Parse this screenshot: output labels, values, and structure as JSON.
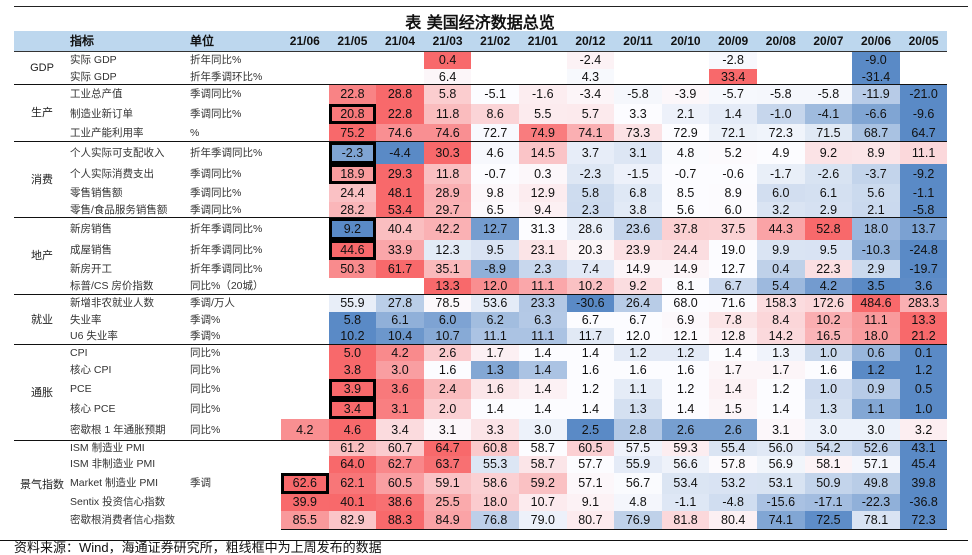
{
  "title": "表  美国经济数据总览",
  "header": {
    "indicator": "指标",
    "unit": "单位"
  },
  "columns": [
    "21/06",
    "21/05",
    "21/04",
    "21/03",
    "21/02",
    "21/01",
    "20/12",
    "20/11",
    "20/10",
    "20/09",
    "20/08",
    "20/07",
    "20/06",
    "20/05"
  ],
  "colors": {
    "high": "#f8696b",
    "mid": "#fcfcff",
    "low": "#5a8ac6",
    "header_bg": "#bdd7ee"
  },
  "groups": [
    {
      "label": "GDP",
      "rows": [
        {
          "name": "实际 GDP",
          "unit": "折年同比%",
          "values": [
            null,
            null,
            null,
            "0.4",
            null,
            null,
            "-2.4",
            null,
            null,
            "-2.8",
            null,
            null,
            "-9.0",
            null
          ]
        },
        {
          "name": "实际 GDP",
          "unit": "折年季调环比%",
          "values": [
            null,
            null,
            null,
            "6.4",
            null,
            null,
            "4.3",
            null,
            null,
            "33.4",
            null,
            null,
            "-31.4",
            null
          ]
        }
      ]
    },
    {
      "label": "生产",
      "rows": [
        {
          "name": "工业总产值",
          "unit": "季调同比%",
          "values": [
            null,
            "22.8",
            "28.8",
            "5.8",
            "-5.1",
            "-1.6",
            "-3.4",
            "-5.8",
            "-3.9",
            "-5.7",
            "-5.8",
            "-5.8",
            "-11.9",
            "-21.0"
          ]
        },
        {
          "name": "制造业新订单",
          "unit": "季调同比%",
          "highlight": 1,
          "values": [
            null,
            "20.8",
            "22.8",
            "11.8",
            "8.6",
            "5.5",
            "5.7",
            "3.3",
            "2.1",
            "1.4",
            "-1.0",
            "-4.1",
            "-6.6",
            "-9.6"
          ]
        },
        {
          "name": "工业产能利用率",
          "unit": "%",
          "values": [
            null,
            "75.2",
            "74.6",
            "74.6",
            "72.7",
            "74.9",
            "74.1",
            "73.3",
            "72.9",
            "72.1",
            "72.3",
            "71.5",
            "68.7",
            "64.7"
          ]
        }
      ]
    },
    {
      "label": "消费",
      "rows": [
        {
          "name": "个人实际可支配收入",
          "unit": "折年季调同比%",
          "highlight": 1,
          "values": [
            null,
            "-2.3",
            "-4.4",
            "30.3",
            "4.6",
            "14.5",
            "3.7",
            "3.1",
            "4.8",
            "5.2",
            "4.9",
            "9.2",
            "8.9",
            "11.1"
          ]
        },
        {
          "name": "个人实际消费支出",
          "unit": "季调同比%",
          "highlight": 1,
          "values": [
            null,
            "18.9",
            "29.3",
            "11.8",
            "-0.7",
            "0.3",
            "-2.3",
            "-1.5",
            "-0.7",
            "-0.6",
            "-1.7",
            "-2.6",
            "-3.7",
            "-9.2"
          ]
        },
        {
          "name": "零售销售额",
          "unit": "季调同比%",
          "values": [
            null,
            "24.4",
            "48.1",
            "28.9",
            "9.8",
            "12.9",
            "5.8",
            "6.8",
            "8.5",
            "8.9",
            "6.0",
            "6.1",
            "5.6",
            "-1.1"
          ]
        },
        {
          "name": "零售/食品服务销售额",
          "unit": "季调同比%",
          "values": [
            null,
            "28.2",
            "53.4",
            "29.7",
            "6.5",
            "9.4",
            "2.3",
            "3.8",
            "5.6",
            "6.0",
            "3.2",
            "2.9",
            "2.1",
            "-5.8"
          ]
        }
      ]
    },
    {
      "label": "地产",
      "rows": [
        {
          "name": "新房销售",
          "unit": "折年季调同比%",
          "highlight": 1,
          "values": [
            null,
            "9.2",
            "40.4",
            "42.2",
            "12.7",
            "31.3",
            "28.6",
            "23.6",
            "37.8",
            "37.5",
            "44.3",
            "52.8",
            "18.0",
            "13.7"
          ]
        },
        {
          "name": "成屋销售",
          "unit": "折年季调同比%",
          "highlight": 1,
          "values": [
            null,
            "44.6",
            "33.9",
            "12.3",
            "9.5",
            "23.1",
            "20.3",
            "23.9",
            "24.4",
            "19.0",
            "9.9",
            "9.5",
            "-10.3",
            "-24.8"
          ]
        },
        {
          "name": "新房开工",
          "unit": "折年季调同比%",
          "values": [
            null,
            "50.3",
            "61.7",
            "35.1",
            "-8.9",
            "2.3",
            "7.4",
            "14.9",
            "14.9",
            "12.7",
            "0.4",
            "22.3",
            "2.9",
            "-19.7"
          ]
        },
        {
          "name": "标普/CS 房价指数",
          "unit": "同比%（20城）",
          "values": [
            null,
            null,
            null,
            "13.3",
            "12.0",
            "11.1",
            "10.2",
            "9.2",
            "8.1",
            "6.7",
            "5.4",
            "4.2",
            "3.5",
            "3.6"
          ]
        }
      ]
    },
    {
      "label": "就业",
      "rows": [
        {
          "name": "新增非农就业人数",
          "unit": "季调/万人",
          "values": [
            null,
            "55.9",
            "27.8",
            "78.5",
            "53.6",
            "23.3",
            "-30.6",
            "26.4",
            "68.0",
            "71.6",
            "158.3",
            "172.6",
            "484.6",
            "283.3"
          ]
        },
        {
          "name": "失业率",
          "unit": "季调%",
          "values": [
            null,
            "5.8",
            "6.1",
            "6.0",
            "6.2",
            "6.3",
            "6.7",
            "6.7",
            "6.9",
            "7.8",
            "8.4",
            "10.2",
            "11.1",
            "13.3"
          ]
        },
        {
          "name": "U6 失业率",
          "unit": "季调%",
          "values": [
            null,
            "10.2",
            "10.4",
            "10.7",
            "11.1",
            "11.1",
            "11.7",
            "12.0",
            "12.1",
            "12.8",
            "14.2",
            "16.5",
            "18.0",
            "21.2"
          ]
        }
      ]
    },
    {
      "label": "通胀",
      "rows": [
        {
          "name": "CPI",
          "unit": "同比%",
          "values": [
            null,
            "5.0",
            "4.2",
            "2.6",
            "1.7",
            "1.4",
            "1.4",
            "1.2",
            "1.2",
            "1.4",
            "1.3",
            "1.0",
            "0.6",
            "0.1"
          ]
        },
        {
          "name": "核心 CPI",
          "unit": "同比%",
          "values": [
            null,
            "3.8",
            "3.0",
            "1.6",
            "1.3",
            "1.4",
            "1.6",
            "1.6",
            "1.6",
            "1.7",
            "1.7",
            "1.6",
            "1.2",
            "1.2"
          ]
        },
        {
          "name": "PCE",
          "unit": "同比%",
          "highlight": 1,
          "values": [
            null,
            "3.9",
            "3.6",
            "2.4",
            "1.6",
            "1.4",
            "1.2",
            "1.1",
            "1.2",
            "1.4",
            "1.2",
            "1.0",
            "0.9",
            "0.5"
          ]
        },
        {
          "name": "核心 PCE",
          "unit": "同比%",
          "highlight": 1,
          "values": [
            null,
            "3.4",
            "3.1",
            "2.0",
            "1.4",
            "1.4",
            "1.4",
            "1.3",
            "1.4",
            "1.5",
            "1.4",
            "1.3",
            "1.1",
            "1.0"
          ]
        },
        {
          "name": "密歇根 1 年通胀预期",
          "unit": "同比%",
          "values": [
            "4.2",
            "4.6",
            "3.4",
            "3.1",
            "3.3",
            "3.0",
            "2.5",
            "2.8",
            "2.6",
            "2.6",
            "3.1",
            "3.0",
            "3.0",
            "3.2"
          ]
        }
      ]
    },
    {
      "label": "景气指数",
      "rows": [
        {
          "name": "ISM 制造业 PMI",
          "unit": "",
          "values": [
            null,
            "61.2",
            "60.7",
            "64.7",
            "60.8",
            "58.7",
            "60.5",
            "57.5",
            "59.3",
            "55.4",
            "56.0",
            "54.2",
            "52.6",
            "43.1"
          ]
        },
        {
          "name": "ISM 非制造业 PMI",
          "unit": "",
          "values": [
            null,
            "64.0",
            "62.7",
            "63.7",
            "55.3",
            "58.7",
            "57.7",
            "55.9",
            "56.6",
            "57.8",
            "56.9",
            "58.1",
            "57.1",
            "45.4"
          ]
        },
        {
          "name": "Market 制造业 PMI",
          "unit": "季调",
          "highlight": 0,
          "values": [
            "62.6",
            "62.1",
            "60.5",
            "59.1",
            "58.6",
            "59.2",
            "57.1",
            "56.7",
            "53.4",
            "53.2",
            "53.1",
            "50.9",
            "49.8",
            "39.8"
          ]
        },
        {
          "name": "Sentix 投资信心指数",
          "unit": "",
          "values": [
            "39.9",
            "40.1",
            "38.6",
            "25.5",
            "18.0",
            "10.7",
            "9.1",
            "4.8",
            "-1.1",
            "-4.8",
            "-15.6",
            "-17.1",
            "-22.3",
            "-36.8"
          ]
        },
        {
          "name": "密歇根消费者信心指数",
          "unit": "",
          "values": [
            "85.5",
            "82.9",
            "88.3",
            "84.9",
            "76.8",
            "79.0",
            "80.7",
            "76.9",
            "81.8",
            "80.4",
            "74.1",
            "72.5",
            "78.1",
            "72.3"
          ]
        }
      ]
    }
  ],
  "footer": "资料来源：Wind，海通证券研究所，粗线框中为上周发布的数据",
  "chart_data": {
    "type": "heatmap",
    "title": "表  美国经济数据总览",
    "color_scale": "per-row 3-color (blue low, white median, red high)"
  }
}
